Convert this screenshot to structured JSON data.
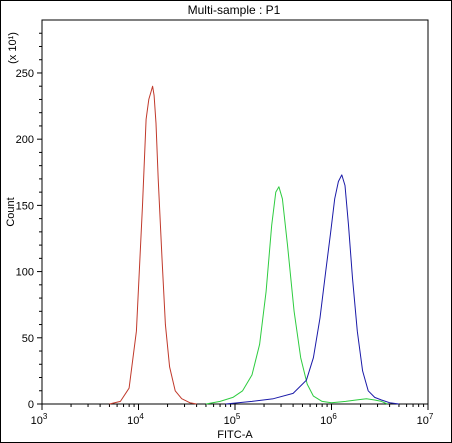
{
  "chart_data": {
    "type": "line",
    "title": "Multi-sample : P1",
    "xlabel": "FITC-A",
    "ylabel": "Count",
    "y_multiplier": "(x 10¹)",
    "xscale": "log",
    "xlim": [
      1000,
      10000000
    ],
    "ylim": [
      0,
      290
    ],
    "x_ticks": [
      {
        "value": 1000,
        "base": "10",
        "exp": "3"
      },
      {
        "value": 10000,
        "base": "10",
        "exp": "4"
      },
      {
        "value": 100000,
        "base": "10",
        "exp": "5"
      },
      {
        "value": 1000000,
        "base": "10",
        "exp": "6"
      },
      {
        "value": 10000000,
        "base": "10",
        "exp": "7"
      }
    ],
    "y_ticks": [
      0,
      50,
      100,
      150,
      200,
      250
    ],
    "grid": false,
    "legend": "none",
    "series": [
      {
        "color": "#c0392b",
        "x": [
          5000,
          6500,
          8000,
          9500,
          11000,
          12000,
          12800,
          13500,
          14000,
          14500,
          15200,
          16000,
          17500,
          19000,
          21000,
          24000,
          28000,
          34000,
          40000
        ],
        "y": [
          0,
          2,
          12,
          55,
          150,
          215,
          230,
          236,
          240,
          233,
          212,
          170,
          110,
          60,
          28,
          10,
          4,
          1,
          0
        ]
      },
      {
        "color": "#2ecc40",
        "x": [
          50000,
          70000,
          95000,
          120000,
          150000,
          180000,
          210000,
          240000,
          265000,
          285000,
          310000,
          350000,
          410000,
          480000,
          560000,
          650000,
          800000,
          1000000,
          1400000,
          1800000,
          2300000,
          2800000,
          3300000,
          3800000
        ],
        "y": [
          0,
          2,
          5,
          10,
          22,
          45,
          85,
          135,
          160,
          164,
          155,
          120,
          70,
          35,
          15,
          6,
          2,
          1,
          2,
          3,
          4,
          3,
          2,
          0
        ]
      },
      {
        "color": "#1a1aa8",
        "x": [
          80000,
          150000,
          250000,
          400000,
          550000,
          650000,
          760000,
          870000,
          980000,
          1080000,
          1180000,
          1280000,
          1380000,
          1500000,
          1650000,
          1850000,
          2100000,
          2400000,
          2800000,
          3300000,
          4000000,
          5000000
        ],
        "y": [
          0,
          2,
          4,
          8,
          18,
          35,
          65,
          100,
          130,
          155,
          168,
          173,
          165,
          135,
          95,
          55,
          25,
          10,
          5,
          3,
          1,
          0
        ]
      }
    ]
  }
}
